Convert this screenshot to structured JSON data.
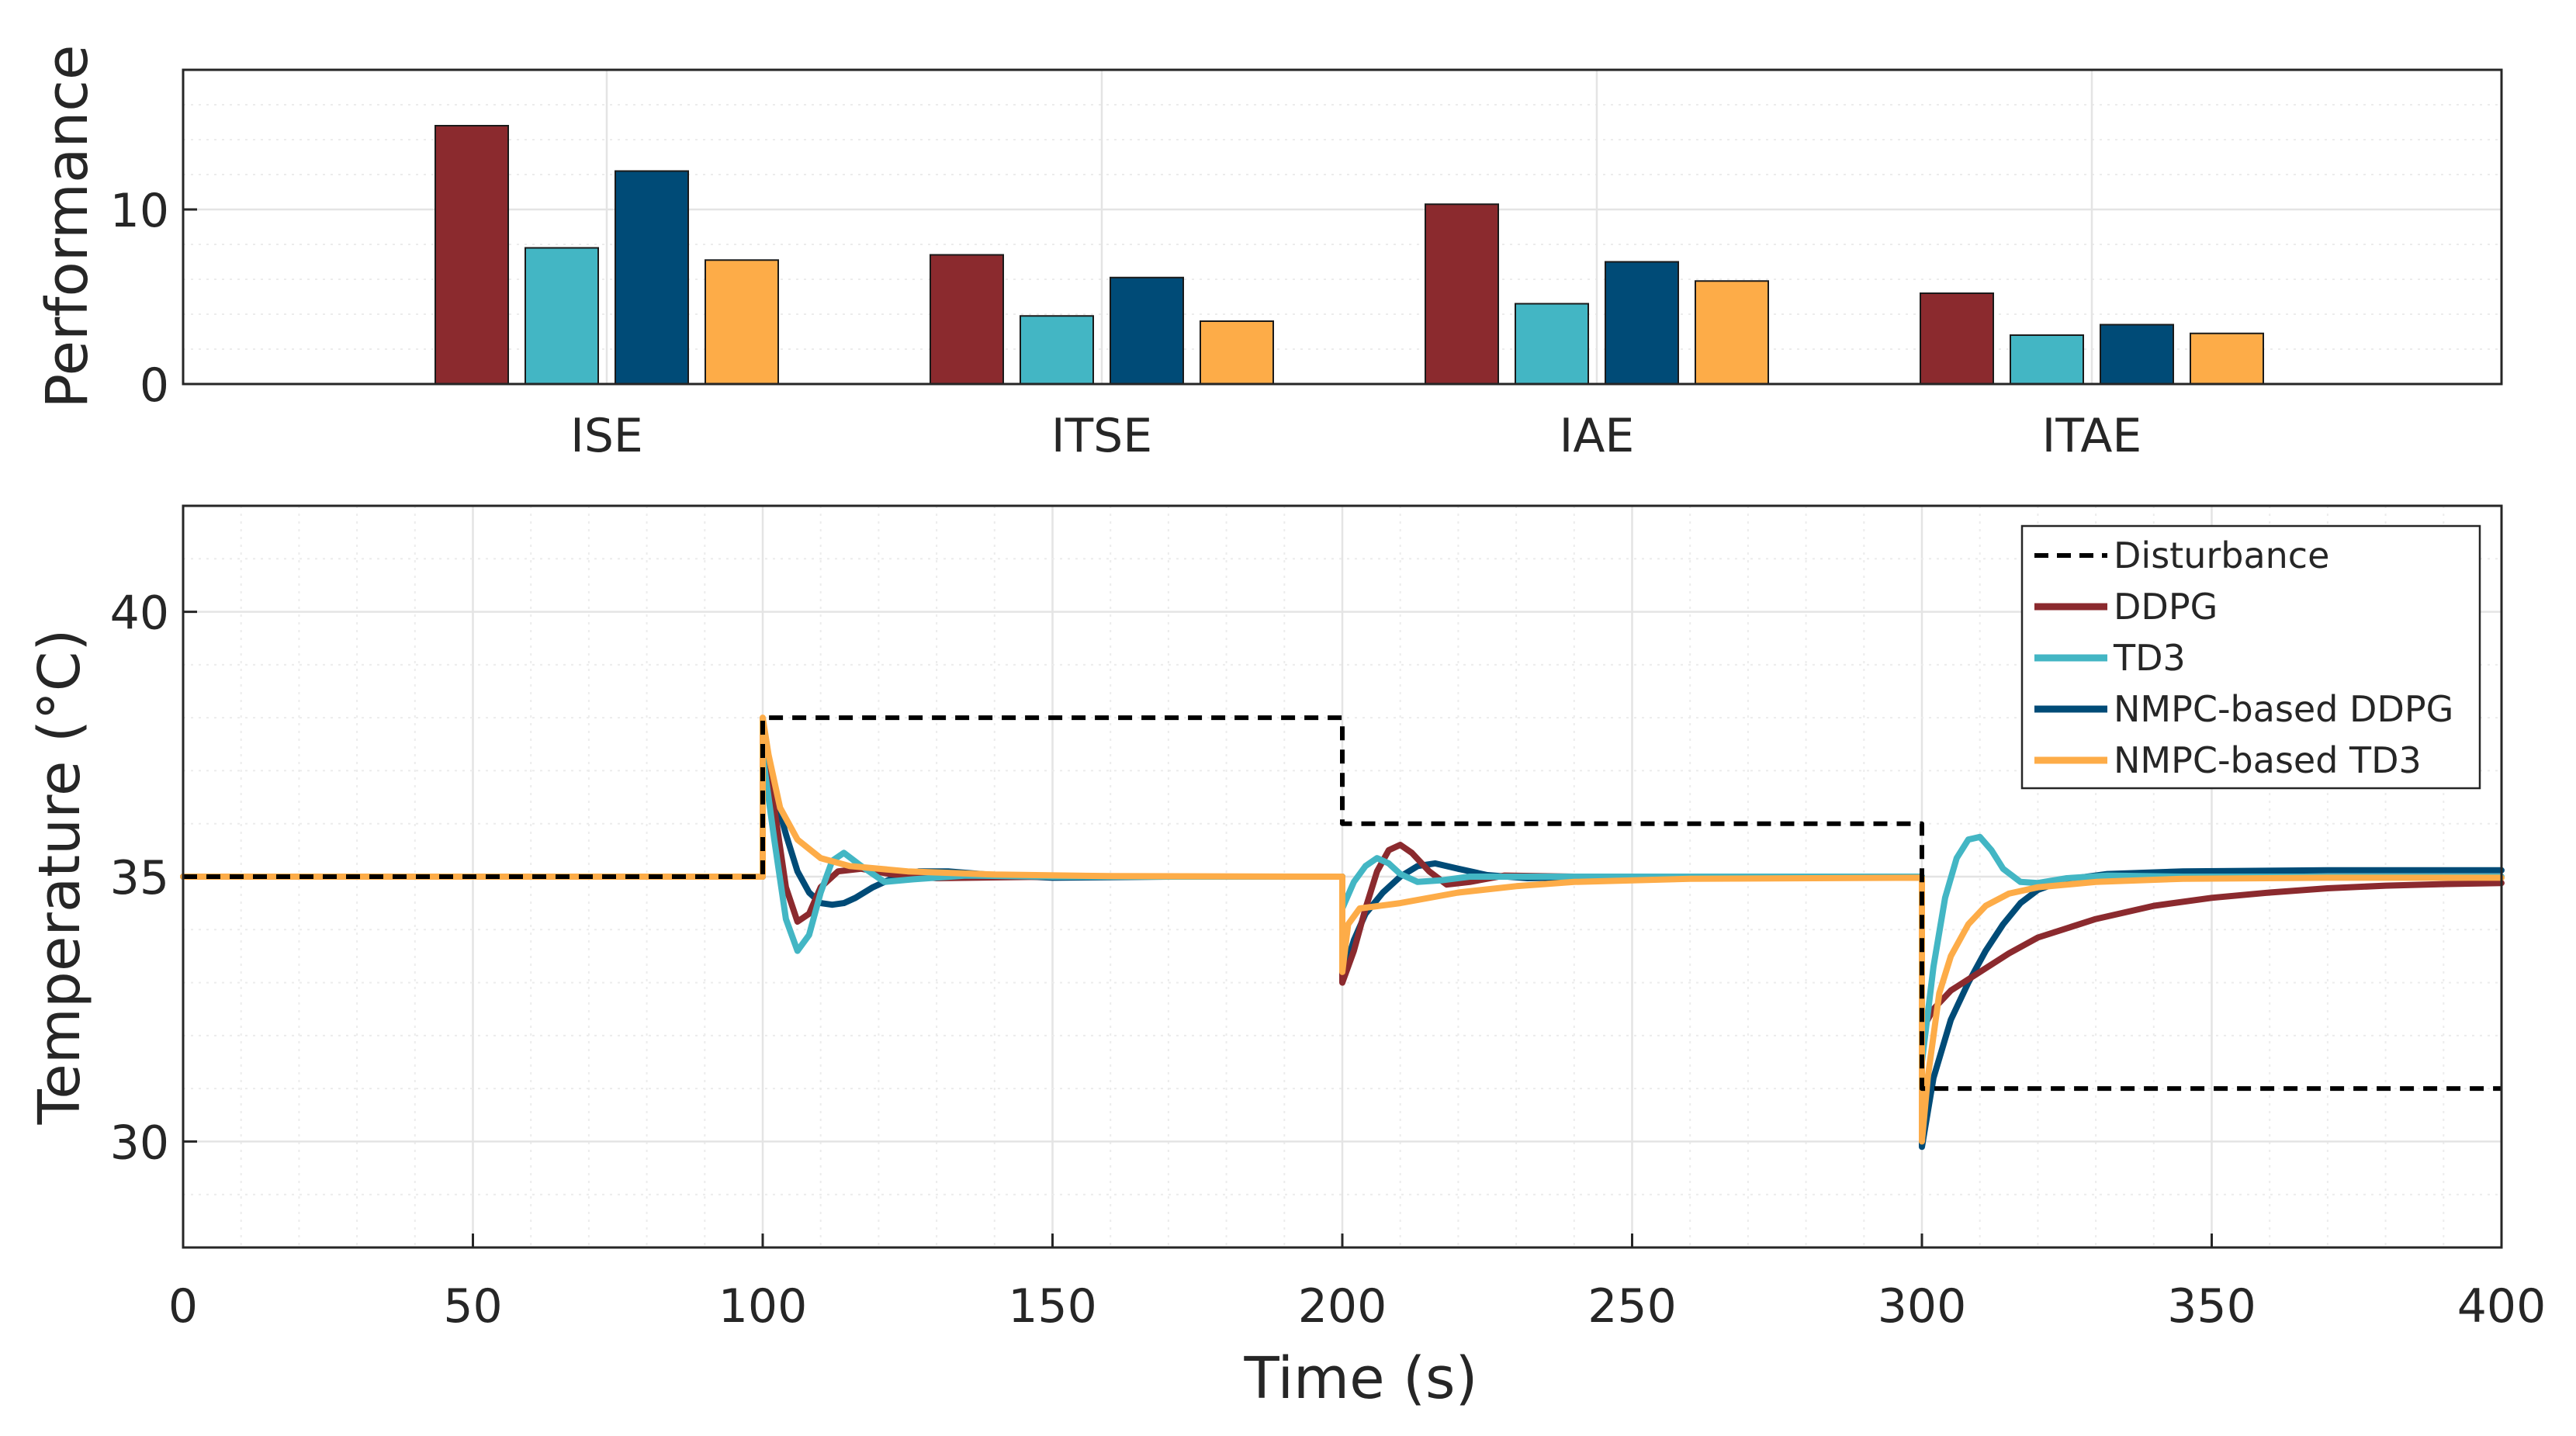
{
  "chart_data": [
    {
      "type": "bar",
      "ylabel": "Performance",
      "ylim": [
        0,
        18
      ],
      "yticks": [
        "0",
        "10"
      ],
      "categories": [
        "ISE",
        "ITSE",
        "IAE",
        "ITAE"
      ],
      "series": [
        {
          "name": "DDPG",
          "color": "#8b2a2e",
          "values": [
            14.8,
            7.4,
            10.3,
            5.2
          ]
        },
        {
          "name": "TD3",
          "color": "#43b6c4",
          "values": [
            7.8,
            3.9,
            4.6,
            2.8
          ]
        },
        {
          "name": "NMPC-based DDPG",
          "color": "#004b77",
          "values": [
            12.2,
            6.1,
            7.0,
            3.4
          ]
        },
        {
          "name": "NMPC-based TD3",
          "color": "#fdac48",
          "values": [
            7.1,
            3.6,
            5.9,
            2.9
          ]
        }
      ]
    },
    {
      "type": "line",
      "xlabel": "Time (s)",
      "ylabel": "Temperature (°C)",
      "xlim": [
        0,
        400
      ],
      "ylim": [
        28,
        42
      ],
      "xticks": [
        "0",
        "50",
        "100",
        "150",
        "200",
        "250",
        "300",
        "350",
        "400"
      ],
      "yticks": [
        "30",
        "35",
        "40"
      ],
      "legend_position": "top-right",
      "series": [
        {
          "name": "Disturbance",
          "color": "#000000",
          "style": "dashed",
          "points": [
            [
              0,
              35
            ],
            [
              100,
              35
            ],
            [
              100,
              38
            ],
            [
              200,
              38
            ],
            [
              200,
              36
            ],
            [
              300,
              36
            ],
            [
              300,
              31
            ],
            [
              400,
              31
            ]
          ]
        },
        {
          "name": "DDPG",
          "color": "#8b2a2e",
          "style": "solid",
          "points": [
            [
              0,
              35
            ],
            [
              100,
              35
            ],
            [
              100,
              37.6
            ],
            [
              102,
              36.3
            ],
            [
              104,
              34.8
            ],
            [
              106,
              34.15
            ],
            [
              108,
              34.3
            ],
            [
              110,
              34.8
            ],
            [
              113,
              35.1
            ],
            [
              117,
              35.15
            ],
            [
              122,
              35.05
            ],
            [
              130,
              34.97
            ],
            [
              150,
              35
            ],
            [
              200,
              35
            ],
            [
              200,
              33
            ],
            [
              202,
              33.6
            ],
            [
              204,
              34.4
            ],
            [
              206,
              35.1
            ],
            [
              208,
              35.5
            ],
            [
              210,
              35.6
            ],
            [
              212,
              35.45
            ],
            [
              215,
              35.1
            ],
            [
              218,
              34.85
            ],
            [
              222,
              34.9
            ],
            [
              228,
              35.02
            ],
            [
              240,
              35
            ],
            [
              300,
              35
            ],
            [
              300,
              32.1
            ],
            [
              302,
              32.5
            ],
            [
              305,
              32.85
            ],
            [
              310,
              33.2
            ],
            [
              315,
              33.55
            ],
            [
              320,
              33.85
            ],
            [
              330,
              34.2
            ],
            [
              340,
              34.45
            ],
            [
              350,
              34.6
            ],
            [
              360,
              34.7
            ],
            [
              370,
              34.78
            ],
            [
              380,
              34.83
            ],
            [
              390,
              34.86
            ],
            [
              400,
              34.88
            ]
          ]
        },
        {
          "name": "TD3",
          "color": "#43b6c4",
          "style": "solid",
          "points": [
            [
              0,
              35
            ],
            [
              100,
              35
            ],
            [
              100,
              37.3
            ],
            [
              102,
              35.7
            ],
            [
              104,
              34.2
            ],
            [
              106,
              33.6
            ],
            [
              108,
              33.9
            ],
            [
              110,
              34.7
            ],
            [
              112,
              35.3
            ],
            [
              114,
              35.45
            ],
            [
              117,
              35.2
            ],
            [
              121,
              34.9
            ],
            [
              126,
              34.95
            ],
            [
              135,
              35.02
            ],
            [
              150,
              35
            ],
            [
              200,
              35
            ],
            [
              200,
              34.4
            ],
            [
              202,
              34.9
            ],
            [
              204,
              35.2
            ],
            [
              206,
              35.35
            ],
            [
              208,
              35.25
            ],
            [
              210,
              35.05
            ],
            [
              213,
              34.9
            ],
            [
              217,
              34.93
            ],
            [
              222,
              35
            ],
            [
              240,
              35
            ],
            [
              300,
              35
            ],
            [
              300,
              31.5
            ],
            [
              302,
              33.3
            ],
            [
              304,
              34.6
            ],
            [
              306,
              35.35
            ],
            [
              308,
              35.7
            ],
            [
              310,
              35.75
            ],
            [
              312,
              35.5
            ],
            [
              314,
              35.15
            ],
            [
              317,
              34.9
            ],
            [
              320,
              34.88
            ],
            [
              325,
              34.97
            ],
            [
              332,
              35.02
            ],
            [
              345,
              35
            ],
            [
              400,
              35
            ]
          ]
        },
        {
          "name": "NMPC-based DDPG",
          "color": "#004b77",
          "style": "solid",
          "points": [
            [
              0,
              35
            ],
            [
              100,
              35
            ],
            [
              100,
              37.5
            ],
            [
              102,
              36.6
            ],
            [
              104,
              35.8
            ],
            [
              106,
              35.1
            ],
            [
              108,
              34.7
            ],
            [
              110,
              34.5
            ],
            [
              112,
              34.47
            ],
            [
              114,
              34.5
            ],
            [
              116,
              34.6
            ],
            [
              119,
              34.8
            ],
            [
              123,
              35
            ],
            [
              127,
              35.1
            ],
            [
              132,
              35.1
            ],
            [
              140,
              35.03
            ],
            [
              150,
              34.98
            ],
            [
              170,
              35
            ],
            [
              200,
              35
            ],
            [
              200,
              33.1
            ],
            [
              202,
              33.8
            ],
            [
              204,
              34.3
            ],
            [
              207,
              34.7
            ],
            [
              210,
              35
            ],
            [
              213,
              35.2
            ],
            [
              216,
              35.25
            ],
            [
              220,
              35.15
            ],
            [
              225,
              35.03
            ],
            [
              232,
              34.97
            ],
            [
              245,
              35
            ],
            [
              300,
              35
            ],
            [
              300,
              29.9
            ],
            [
              302,
              31.2
            ],
            [
              305,
              32.3
            ],
            [
              308,
              33
            ],
            [
              311,
              33.6
            ],
            [
              314,
              34.1
            ],
            [
              317,
              34.5
            ],
            [
              320,
              34.75
            ],
            [
              325,
              34.95
            ],
            [
              332,
              35.05
            ],
            [
              345,
              35.1
            ],
            [
              370,
              35.12
            ],
            [
              400,
              35.12
            ]
          ]
        },
        {
          "name": "NMPC-based TD3",
          "color": "#fdac48",
          "style": "solid",
          "points": [
            [
              0,
              35
            ],
            [
              100,
              35
            ],
            [
              100,
              38
            ],
            [
              101,
              37.3
            ],
            [
              103,
              36.3
            ],
            [
              106,
              35.7
            ],
            [
              110,
              35.35
            ],
            [
              115,
              35.2
            ],
            [
              125,
              35.1
            ],
            [
              140,
              35.04
            ],
            [
              160,
              35.01
            ],
            [
              200,
              35
            ],
            [
              200,
              33.2
            ],
            [
              201,
              34.1
            ],
            [
              203,
              34.4
            ],
            [
              210,
              34.5
            ],
            [
              220,
              34.7
            ],
            [
              230,
              34.82
            ],
            [
              240,
              34.9
            ],
            [
              260,
              34.96
            ],
            [
              300,
              34.98
            ],
            [
              300,
              30
            ],
            [
              301,
              31.2
            ],
            [
              303,
              32.8
            ],
            [
              305,
              33.5
            ],
            [
              308,
              34.1
            ],
            [
              311,
              34.45
            ],
            [
              315,
              34.68
            ],
            [
              320,
              34.8
            ],
            [
              330,
              34.9
            ],
            [
              345,
              34.96
            ],
            [
              370,
              34.98
            ],
            [
              400,
              34.98
            ]
          ]
        }
      ]
    }
  ]
}
